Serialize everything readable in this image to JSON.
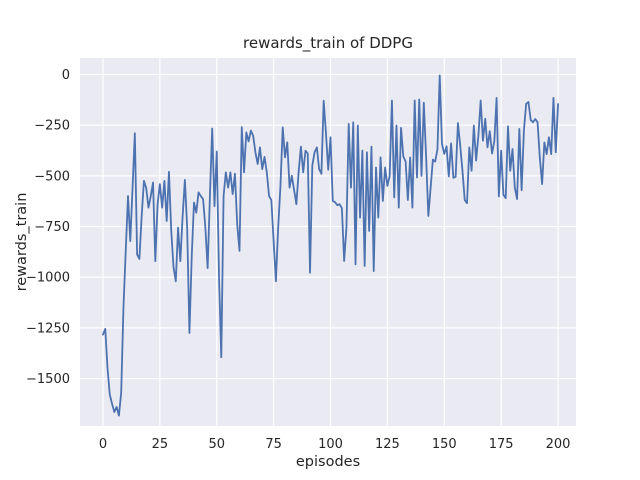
{
  "figure": {
    "background": "#ffffff"
  },
  "chart_data": {
    "type": "line",
    "title": "rewards_train of DDPG",
    "xlabel": "episodes",
    "ylabel": "rewards_train",
    "legend": null,
    "grid": true,
    "style": "seaborn-darkgrid",
    "plot_background": "#eaeaf2",
    "grid_color": "#ffffff",
    "line_color": "#4c72b0",
    "text_color": "#262626",
    "xlim": [
      -10.1,
      207.9
    ],
    "ylim": [
      -1734,
      81
    ],
    "xticks": [
      0,
      25,
      50,
      75,
      100,
      125,
      150,
      175,
      200
    ],
    "xtick_labels": [
      "0",
      "25",
      "50",
      "75",
      "100",
      "125",
      "150",
      "175",
      "200"
    ],
    "yticks": [
      0,
      -250,
      -500,
      -750,
      -1000,
      -1250,
      -1500
    ],
    "ytick_labels": [
      "0",
      "−250",
      "−500",
      "−750",
      "−1000",
      "−1250",
      "−1500"
    ],
    "series": [
      {
        "name": "rewards_train",
        "x_start": 0,
        "x_step": 1,
        "values": [
          -1283,
          -1255,
          -1450,
          -1580,
          -1625,
          -1665,
          -1640,
          -1683,
          -1570,
          -1150,
          -870,
          -600,
          -822,
          -560,
          -290,
          -888,
          -910,
          -700,
          -525,
          -560,
          -657,
          -600,
          -533,
          -921,
          -640,
          -541,
          -657,
          -525,
          -723,
          -480,
          -772,
          -950,
          -1020,
          -756,
          -921,
          -700,
          -520,
          -756,
          -1275,
          -900,
          -632,
          -682,
          -582,
          -600,
          -615,
          -756,
          -955,
          -600,
          -267,
          -650,
          -380,
          -1000,
          -1395,
          -600,
          -483,
          -558,
          -483,
          -590,
          -490,
          -740,
          -870,
          -260,
          -483,
          -286,
          -330,
          -277,
          -302,
          -384,
          -442,
          -360,
          -467,
          -407,
          -483,
          -600,
          -620,
          -822,
          -1020,
          -756,
          -550,
          -261,
          -409,
          -335,
          -558,
          -500,
          -570,
          -640,
          -480,
          -356,
          -483,
          -376,
          -390,
          -978,
          -450,
          -384,
          -360,
          -467,
          -490,
          -130,
          -290,
          -470,
          -310,
          -624,
          -630,
          -645,
          -640,
          -660,
          -920,
          -756,
          -244,
          -558,
          -236,
          -937,
          -252,
          -706,
          -376,
          -945,
          -384,
          -772,
          -356,
          -970,
          -459,
          -706,
          -409,
          -624,
          -459,
          -550,
          -500,
          -129,
          -607,
          -252,
          -657,
          -264,
          -405,
          -429,
          -619,
          -410,
          -657,
          -129,
          -508,
          -124,
          -500,
          -140,
          -400,
          -698,
          -560,
          -420,
          -430,
          -370,
          -5,
          -343,
          -392,
          -355,
          -503,
          -340,
          -510,
          -505,
          -240,
          -350,
          -475,
          -620,
          -635,
          -360,
          -475,
          -252,
          -425,
          -302,
          -129,
          -327,
          -219,
          -360,
          -280,
          -390,
          -330,
          -116,
          -602,
          -376,
          -594,
          -610,
          -256,
          -475,
          -368,
          -558,
          -615,
          -269,
          -571,
          -277,
          -145,
          -136,
          -225,
          -236,
          -220,
          -236,
          -409,
          -541,
          -335,
          -393,
          -310,
          -393,
          -116,
          -384,
          -146
        ]
      }
    ]
  }
}
